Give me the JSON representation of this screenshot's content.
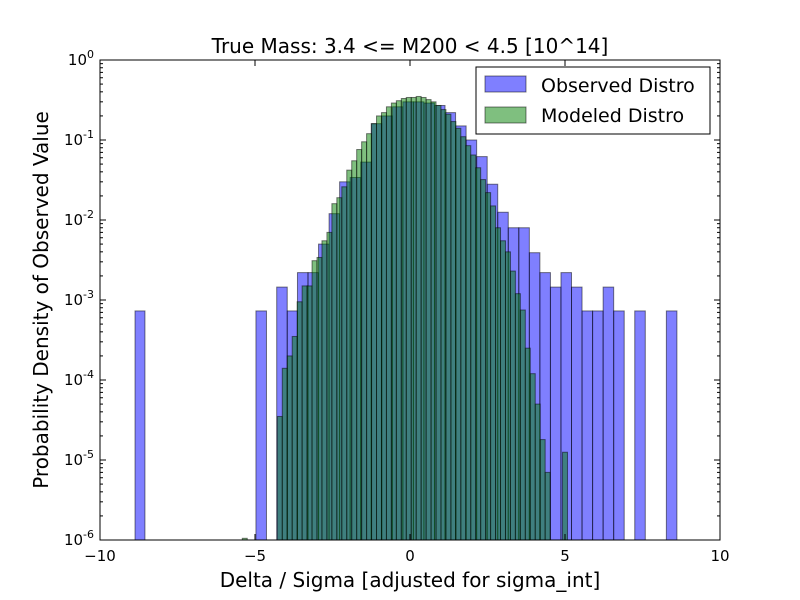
{
  "chart_data": {
    "type": "bar",
    "title": "True Mass: 3.4 <= M200 < 4.5  [10^14]",
    "xlabel": "Delta / Sigma [adjusted for sigma_int]",
    "ylabel": "Probability Density of Observed Value",
    "xlim": [
      -10,
      10
    ],
    "ylim": [
      1e-06,
      1
    ],
    "yscale": "log",
    "xticks": [
      {
        "value": -10,
        "label": "−10"
      },
      {
        "value": -5,
        "label": "−5"
      },
      {
        "value": 0,
        "label": "0"
      },
      {
        "value": 5,
        "label": "5"
      },
      {
        "value": 10,
        "label": "10"
      }
    ],
    "yticks": [
      {
        "value": 1e-06,
        "base": "10",
        "exp": "-6"
      },
      {
        "value": 1e-05,
        "base": "10",
        "exp": "-5"
      },
      {
        "value": 0.0001,
        "base": "10",
        "exp": "-4"
      },
      {
        "value": 0.001,
        "base": "10",
        "exp": "-3"
      },
      {
        "value": 0.01,
        "base": "10",
        "exp": "-2"
      },
      {
        "value": 0.1,
        "base": "10",
        "exp": "-1"
      },
      {
        "value": 1,
        "base": "10",
        "exp": "0"
      }
    ],
    "legend": {
      "placement": "top-right"
    },
    "series": [
      {
        "name": "Observed Distro",
        "color": "#0000ff",
        "bins": [
          [
            -8.87,
            -8.55,
            0.00073
          ],
          [
            -4.97,
            -4.63,
            0.00073
          ],
          [
            -4.3,
            -3.96,
            0.00145
          ],
          [
            -3.96,
            -3.63,
            0.00073
          ],
          [
            -3.63,
            -3.29,
            0.0022
          ],
          [
            -3.29,
            -2.95,
            0.0022
          ],
          [
            -2.95,
            -2.61,
            0.005
          ],
          [
            -2.61,
            -2.27,
            0.012
          ],
          [
            -2.27,
            -1.93,
            0.03
          ],
          [
            -1.93,
            -1.59,
            0.034
          ],
          [
            -1.59,
            -1.25,
            0.053
          ],
          [
            -1.25,
            -0.91,
            0.16
          ],
          [
            -0.91,
            -0.57,
            0.2
          ],
          [
            -0.57,
            -0.23,
            0.26
          ],
          [
            -0.23,
            0.11,
            0.3
          ],
          [
            0.11,
            0.45,
            0.3
          ],
          [
            0.45,
            0.79,
            0.29
          ],
          [
            0.79,
            1.13,
            0.27
          ],
          [
            1.13,
            1.47,
            0.22
          ],
          [
            1.47,
            1.81,
            0.15
          ],
          [
            1.81,
            2.15,
            0.1
          ],
          [
            2.15,
            2.49,
            0.062
          ],
          [
            2.49,
            2.83,
            0.028
          ],
          [
            2.83,
            3.17,
            0.0125
          ],
          [
            3.17,
            3.51,
            0.008
          ],
          [
            3.51,
            3.85,
            0.008
          ],
          [
            3.85,
            4.19,
            0.0039
          ],
          [
            4.19,
            4.53,
            0.0022
          ],
          [
            4.53,
            4.87,
            0.00145
          ],
          [
            4.87,
            5.21,
            0.0022
          ],
          [
            5.21,
            5.55,
            0.00145
          ],
          [
            5.55,
            5.89,
            0.00073
          ],
          [
            5.89,
            6.23,
            0.00073
          ],
          [
            6.23,
            6.57,
            0.00145
          ],
          [
            6.57,
            6.91,
            0.00073
          ],
          [
            7.25,
            7.59,
            0.00073
          ],
          [
            8.27,
            8.61,
            0.00073
          ]
        ]
      },
      {
        "name": "Modeled Distro",
        "color": "#008000",
        "bins": [
          [
            -5.41,
            -5.25,
            1.05e-06
          ],
          [
            -4.28,
            -4.12,
            3.5e-05
          ],
          [
            -4.12,
            -3.96,
            0.00014
          ],
          [
            -3.96,
            -3.8,
            0.0002
          ],
          [
            -3.8,
            -3.64,
            0.00035
          ],
          [
            -3.64,
            -3.48,
            0.00095
          ],
          [
            -3.48,
            -3.32,
            0.0015
          ],
          [
            -3.32,
            -3.16,
            0.0015
          ],
          [
            -3.16,
            -3.0,
            0.0031
          ],
          [
            -3.0,
            -2.84,
            0.0034
          ],
          [
            -2.84,
            -2.68,
            0.0055
          ],
          [
            -2.68,
            -2.52,
            0.007
          ],
          [
            -2.52,
            -2.36,
            0.016
          ],
          [
            -2.36,
            -2.2,
            0.019
          ],
          [
            -2.2,
            -2.04,
            0.026
          ],
          [
            -2.04,
            -1.88,
            0.042
          ],
          [
            -1.88,
            -1.72,
            0.055
          ],
          [
            -1.72,
            -1.56,
            0.076
          ],
          [
            -1.56,
            -1.4,
            0.095
          ],
          [
            -1.4,
            -1.24,
            0.12
          ],
          [
            -1.24,
            -1.08,
            0.16
          ],
          [
            -1.08,
            -0.92,
            0.2
          ],
          [
            -0.92,
            -0.76,
            0.22
          ],
          [
            -0.76,
            -0.6,
            0.26
          ],
          [
            -0.6,
            -0.44,
            0.29
          ],
          [
            -0.44,
            -0.28,
            0.31
          ],
          [
            -0.28,
            -0.12,
            0.33
          ],
          [
            -0.12,
            0.04,
            0.34
          ],
          [
            0.04,
            0.2,
            0.34
          ],
          [
            0.2,
            0.36,
            0.35
          ],
          [
            0.36,
            0.52,
            0.34
          ],
          [
            0.52,
            0.68,
            0.32
          ],
          [
            0.68,
            0.84,
            0.3
          ],
          [
            0.84,
            1.0,
            0.27
          ],
          [
            1.0,
            1.16,
            0.24
          ],
          [
            1.16,
            1.32,
            0.21
          ],
          [
            1.32,
            1.48,
            0.17
          ],
          [
            1.48,
            1.64,
            0.14
          ],
          [
            1.64,
            1.8,
            0.11
          ],
          [
            1.8,
            1.96,
            0.085
          ],
          [
            1.96,
            2.12,
            0.065
          ],
          [
            2.12,
            2.28,
            0.045
          ],
          [
            2.28,
            2.44,
            0.032
          ],
          [
            2.44,
            2.6,
            0.022
          ],
          [
            2.6,
            2.76,
            0.015
          ],
          [
            2.76,
            2.92,
            0.008
          ],
          [
            2.92,
            3.08,
            0.0055
          ],
          [
            3.08,
            3.24,
            0.004
          ],
          [
            3.24,
            3.4,
            0.0023
          ],
          [
            3.4,
            3.56,
            0.0012
          ],
          [
            3.56,
            3.72,
            0.00075
          ],
          [
            3.72,
            3.88,
            0.00025
          ],
          [
            3.88,
            4.04,
            0.00012
          ],
          [
            4.04,
            4.2,
            5e-05
          ],
          [
            4.2,
            4.36,
            1.8e-05
          ],
          [
            4.36,
            4.52,
            7e-06
          ],
          [
            4.92,
            5.08,
            1.25e-05
          ]
        ]
      }
    ]
  }
}
